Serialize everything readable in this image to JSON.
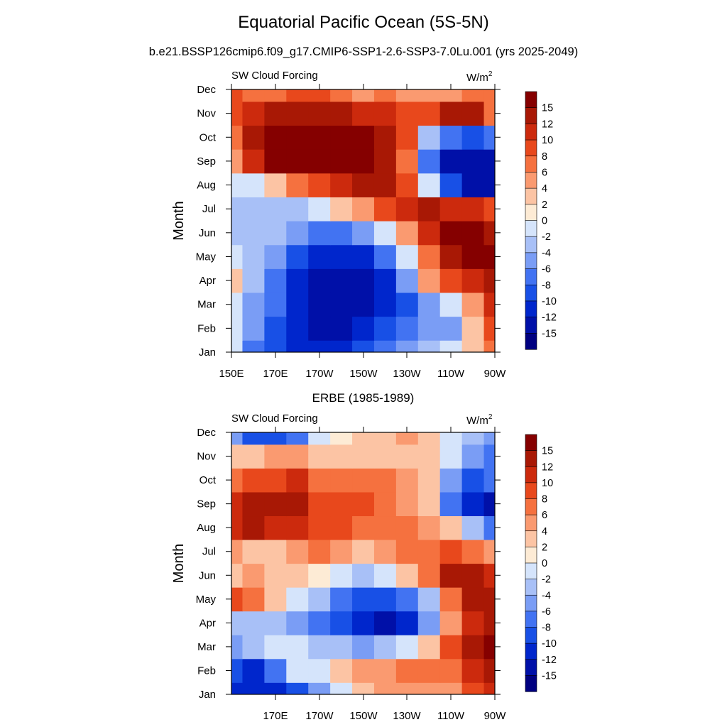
{
  "page": {
    "title": "Equatorial Pacific Ocean (5S-5N)",
    "subtitle": "b.e21.BSSP126cmip6.f09_g17.CMIP6-SSP1-2.6-SSP3-7.0Lu.001 (yrs 2025-2049)"
  },
  "colorbar": {
    "colors": [
      "#000080",
      "#0010a8",
      "#0026cc",
      "#1850e6",
      "#4273f2",
      "#7a9df5",
      "#a8c0f7",
      "#d5e4fb",
      "#fdebd5",
      "#fcc4a4",
      "#fa9a70",
      "#f5713f",
      "#e8481c",
      "#cc2a0d",
      "#a81805",
      "#850000"
    ],
    "labels": [
      "-15",
      "-12",
      "-10",
      "-8",
      "-6",
      "-4",
      "-2",
      "0",
      "2",
      "4",
      "6",
      "8",
      "10",
      "12",
      "15"
    ]
  },
  "chart_data": [
    {
      "type": "heatmap",
      "panel_title": "",
      "left_label": "SW Cloud Forcing",
      "right_label": "W/m",
      "right_label_sup": "2",
      "ylabel": "Month",
      "x_ticks": [
        "150E",
        "170E",
        "170W",
        "150W",
        "130W",
        "110W",
        "90W"
      ],
      "y_ticks": [
        "Jan",
        "Feb",
        "Mar",
        "Apr",
        "May",
        "Jun",
        "Jul",
        "Aug",
        "Sep",
        "Oct",
        "Nov",
        "Dec"
      ],
      "x": [
        150,
        160,
        170,
        180,
        190,
        200,
        210,
        220,
        230,
        240,
        250,
        260,
        270
      ],
      "x_units": "degrees east longitude",
      "y": [
        "Jan",
        "Feb",
        "Mar",
        "Apr",
        "May",
        "Jun",
        "Jul",
        "Aug",
        "Sep",
        "Oct",
        "Nov",
        "Dec"
      ],
      "values": [
        [
          -2,
          -8,
          -10,
          -12,
          -12,
          -12,
          -10,
          -8,
          -6,
          -4,
          -2,
          2,
          6
        ],
        [
          -2,
          -6,
          -10,
          -12,
          -15,
          -15,
          -12,
          -10,
          -8,
          -6,
          -6,
          2,
          8
        ],
        [
          -2,
          -6,
          -8,
          -12,
          -15,
          -15,
          -15,
          -12,
          -10,
          -6,
          -2,
          4,
          10
        ],
        [
          2,
          -4,
          -8,
          -12,
          -15,
          -15,
          -15,
          -12,
          -6,
          4,
          8,
          10,
          12
        ],
        [
          -2,
          -4,
          -6,
          -10,
          -12,
          -12,
          -12,
          -8,
          -2,
          6,
          12,
          15,
          15
        ],
        [
          -4,
          -4,
          -4,
          -6,
          -8,
          -8,
          -6,
          -2,
          4,
          10,
          15,
          15,
          12
        ],
        [
          -4,
          -4,
          -4,
          -4,
          -2,
          2,
          4,
          8,
          10,
          12,
          10,
          10,
          8
        ],
        [
          -2,
          -2,
          2,
          6,
          8,
          10,
          12,
          12,
          8,
          -2,
          -10,
          -15,
          -15
        ],
        [
          4,
          10,
          15,
          15,
          15,
          15,
          15,
          12,
          6,
          -8,
          -15,
          -15,
          -15
        ],
        [
          6,
          12,
          15,
          15,
          15,
          15,
          15,
          12,
          8,
          -4,
          -8,
          -10,
          -8
        ],
        [
          8,
          10,
          12,
          12,
          12,
          12,
          10,
          10,
          8,
          8,
          12,
          12,
          6
        ],
        [
          8,
          6,
          6,
          8,
          8,
          6,
          4,
          6,
          4,
          4,
          4,
          6,
          6
        ]
      ]
    },
    {
      "type": "heatmap",
      "panel_title": "ERBE (1985-1989)",
      "left_label": "SW Cloud Forcing",
      "right_label": "W/m",
      "right_label_sup": "2",
      "ylabel": "Month",
      "x_ticks": [
        "170E",
        "170W",
        "150W",
        "130W",
        "110W",
        "90W"
      ],
      "y_ticks": [
        "Jan",
        "Feb",
        "Mar",
        "Apr",
        "May",
        "Jun",
        "Jul",
        "Aug",
        "Sep",
        "Oct",
        "Nov",
        "Dec"
      ],
      "x": [
        150,
        160,
        170,
        180,
        190,
        200,
        210,
        220,
        230,
        240,
        250,
        260,
        270
      ],
      "x_units": "degrees east longitude",
      "y": [
        "Jan",
        "Feb",
        "Mar",
        "Apr",
        "May",
        "Jun",
        "Jul",
        "Aug",
        "Sep",
        "Oct",
        "Nov",
        "Dec"
      ],
      "values": [
        [
          -12,
          -12,
          -12,
          -10,
          -6,
          -2,
          2,
          4,
          4,
          4,
          4,
          8,
          10
        ],
        [
          -10,
          -12,
          -8,
          -2,
          -2,
          2,
          4,
          4,
          6,
          6,
          6,
          10,
          12
        ],
        [
          -6,
          -4,
          -2,
          -2,
          -4,
          -4,
          -6,
          -4,
          -2,
          2,
          8,
          12,
          15
        ],
        [
          -4,
          -4,
          -4,
          -6,
          -8,
          -10,
          -12,
          -15,
          -12,
          -6,
          4,
          10,
          12
        ],
        [
          8,
          6,
          2,
          -2,
          -4,
          -8,
          -10,
          -10,
          -8,
          -4,
          6,
          12,
          12
        ],
        [
          2,
          4,
          2,
          2,
          0,
          -2,
          -4,
          -2,
          2,
          6,
          12,
          12,
          10
        ],
        [
          4,
          2,
          2,
          4,
          6,
          4,
          2,
          4,
          6,
          6,
          8,
          6,
          4
        ],
        [
          10,
          12,
          10,
          10,
          8,
          8,
          6,
          6,
          6,
          4,
          2,
          -4,
          -8
        ],
        [
          10,
          12,
          12,
          12,
          8,
          8,
          8,
          6,
          4,
          2,
          -8,
          -12,
          -15
        ],
        [
          6,
          8,
          8,
          10,
          6,
          6,
          6,
          6,
          4,
          2,
          -6,
          -10,
          -8
        ],
        [
          2,
          2,
          4,
          4,
          2,
          2,
          2,
          2,
          2,
          2,
          -2,
          -6,
          -8
        ],
        [
          -6,
          -10,
          -10,
          -8,
          -2,
          0,
          2,
          2,
          4,
          2,
          -2,
          -4,
          -6
        ]
      ]
    }
  ]
}
